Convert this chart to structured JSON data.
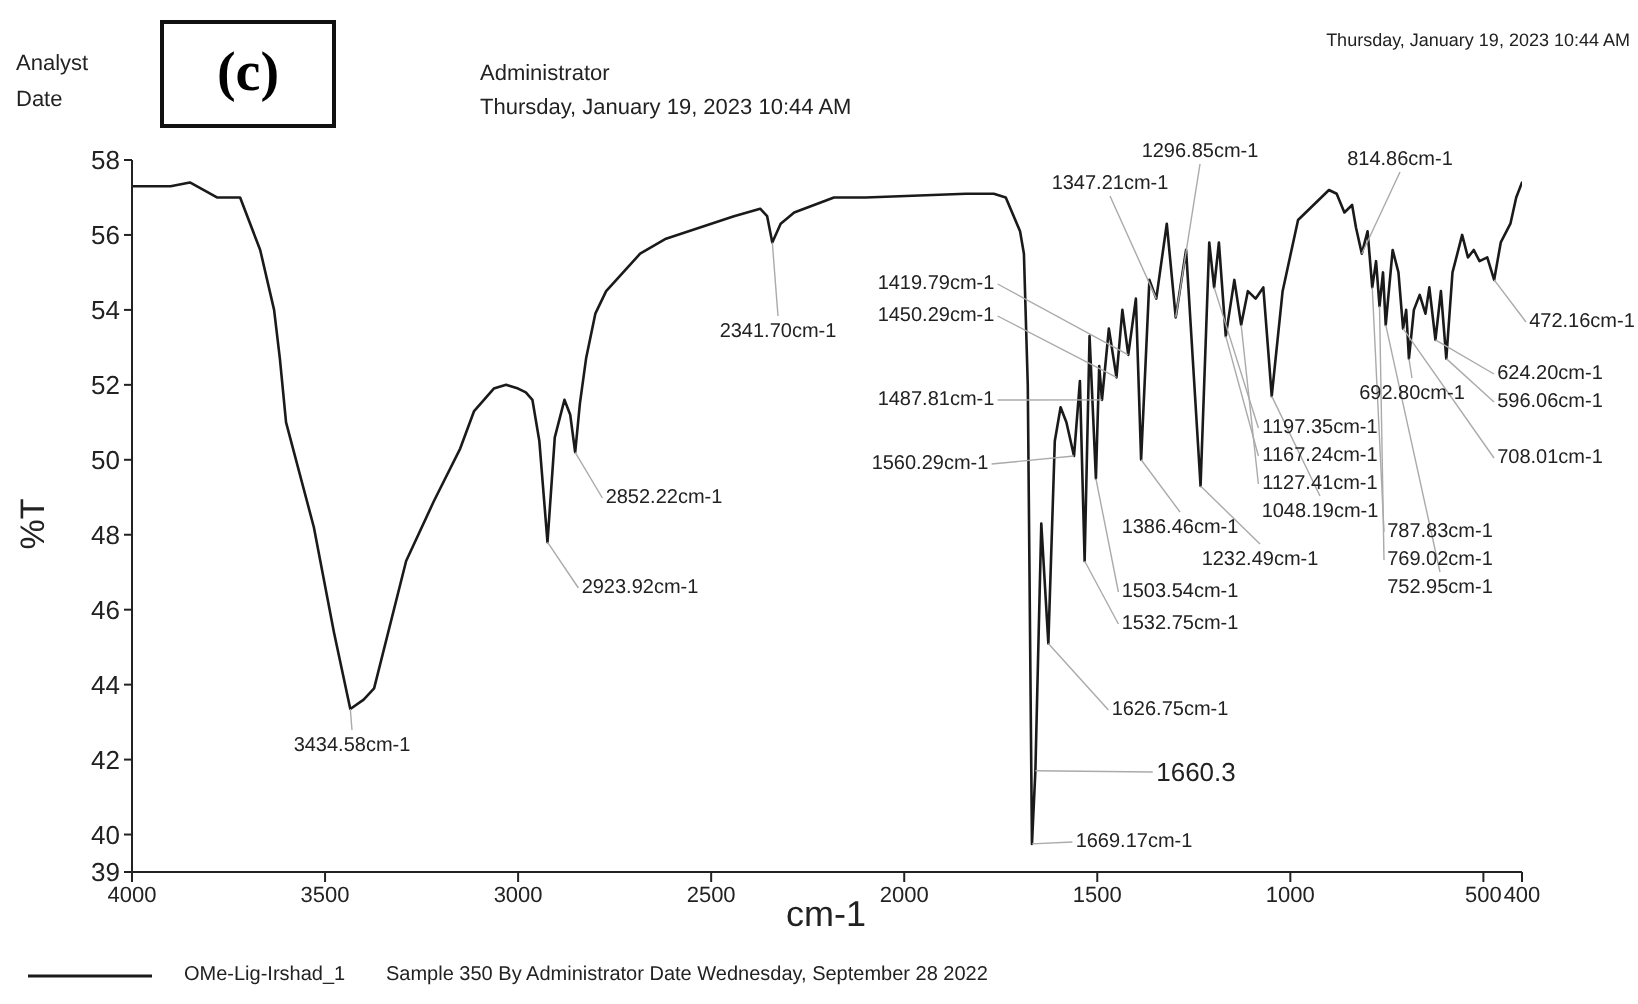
{
  "chart_data": {
    "type": "line",
    "title": "(c)",
    "xlabel": "cm-1",
    "ylabel": "%T",
    "xlim": [
      4000,
      400
    ],
    "xticks": [
      4000,
      3500,
      3000,
      2500,
      2000,
      1500,
      1000,
      500,
      400
    ],
    "ylim": [
      39,
      58
    ],
    "yticks": [
      39,
      40,
      42,
      44,
      46,
      48,
      50,
      52,
      54,
      56,
      58
    ],
    "grid": false,
    "legend": "bottom left",
    "marker": "none",
    "line_style": "solid",
    "series": [
      {
        "name": "OMe-Lig-Irshad_1",
        "color": "#1a1a1a",
        "x": [
          4000,
          3900,
          3850,
          3780,
          3720,
          3668,
          3632,
          3617,
          3601,
          3529,
          3477,
          3434.58,
          3400,
          3373,
          3290,
          3218,
          3150,
          3114,
          3063,
          3031,
          3000,
          2980,
          2963,
          2945,
          2923.92,
          2905,
          2880,
          2865,
          2852.22,
          2840,
          2824,
          2800,
          2772,
          2684,
          2617,
          2441,
          2373,
          2355,
          2341.7,
          2320,
          2285,
          2182,
          2100,
          1840,
          1768,
          1737,
          1700,
          1690,
          1680,
          1669.17,
          1660.3,
          1645,
          1626.75,
          1610,
          1595,
          1580,
          1560.29,
          1545,
          1532.75,
          1520,
          1503.54,
          1495,
          1487.81,
          1470,
          1450.29,
          1435,
          1419.79,
          1400,
          1386.46,
          1365,
          1347.21,
          1320,
          1296.85,
          1270,
          1232.49,
          1210,
          1197.35,
          1185,
          1167.24,
          1145,
          1127.41,
          1110,
          1090,
          1070,
          1048.19,
          1020,
          980,
          930,
          900,
          880,
          860,
          840,
          830,
          814.86,
          800,
          787.83,
          778,
          769.02,
          760,
          752.95,
          735,
          720,
          708.01,
          700,
          692.8,
          680,
          665,
          650,
          640,
          624.2,
          610,
          596.06,
          580,
          555,
          540,
          525,
          510,
          490,
          472.16,
          455,
          430,
          415,
          400
        ],
        "values": [
          57.3,
          57.3,
          57.4,
          57.0,
          57.0,
          55.6,
          54.0,
          52.7,
          51.0,
          48.2,
          45.4,
          43.35,
          43.6,
          43.9,
          47.3,
          48.9,
          50.3,
          51.3,
          51.9,
          52.0,
          51.9,
          51.8,
          51.6,
          50.5,
          47.8,
          50.6,
          51.6,
          51.2,
          50.2,
          51.5,
          52.7,
          53.9,
          54.5,
          55.5,
          55.9,
          56.5,
          56.7,
          56.5,
          55.8,
          56.3,
          56.6,
          57.0,
          57.0,
          57.1,
          57.1,
          57.0,
          56.1,
          55.5,
          52.0,
          39.75,
          41.7,
          48.3,
          45.1,
          50.5,
          51.4,
          51.0,
          50.1,
          52.1,
          47.3,
          53.3,
          49.5,
          52.5,
          51.6,
          53.5,
          52.2,
          54.0,
          52.8,
          54.3,
          50.0,
          54.8,
          54.3,
          56.3,
          53.8,
          55.6,
          49.3,
          55.8,
          54.6,
          55.8,
          53.3,
          54.8,
          53.6,
          54.5,
          54.3,
          54.6,
          51.7,
          54.5,
          56.4,
          56.9,
          57.2,
          57.1,
          56.6,
          56.8,
          56.2,
          55.5,
          56.1,
          54.6,
          55.3,
          54.1,
          55.0,
          53.6,
          55.6,
          55.0,
          53.5,
          54.0,
          52.7,
          54.0,
          54.4,
          53.9,
          54.6,
          53.2,
          54.5,
          52.7,
          55.0,
          56.0,
          55.4,
          55.6,
          55.3,
          55.4,
          54.8,
          55.8,
          56.3,
          57.0,
          57.4
        ]
      }
    ],
    "annotations": [
      "Analyst",
      "Date",
      "Administrator",
      "Thursday, January 19, 2023 10:44 AM",
      "Thursday, January 19, 2023 10:44 AM",
      "Sample 350 By Administrator Date Wednesday, September 28 2022",
      {
        "text": "3434.58cm-1",
        "x": 3434.58,
        "y": 43.35
      },
      {
        "text": "2923.92cm-1",
        "x": 2923.92,
        "y": 47.8
      },
      {
        "text": "2852.22cm-1",
        "x": 2852.22,
        "y": 50.2
      },
      {
        "text": "2341.70cm-1",
        "x": 2341.7,
        "y": 55.8
      },
      {
        "text": "1669.17cm-1",
        "x": 1669.17,
        "y": 39.75
      },
      {
        "text": "1660.3",
        "x": 1660.3,
        "y": 41.7
      },
      {
        "text": "1626.75cm-1",
        "x": 1626.75,
        "y": 45.1
      },
      {
        "text": "1532.75cm-1",
        "x": 1532.75,
        "y": 47.3
      },
      {
        "text": "1503.54cm-1",
        "x": 1503.54,
        "y": 49.5
      },
      {
        "text": "1232.49cm-1",
        "x": 1232.49,
        "y": 49.3
      },
      {
        "text": "1386.46cm-1",
        "x": 1386.46,
        "y": 50.0
      },
      {
        "text": "1560.29cm-1",
        "x": 1560.29,
        "y": 50.1
      },
      {
        "text": "1487.81cm-1",
        "x": 1487.81,
        "y": 51.6
      },
      {
        "text": "1167.24cm-1",
        "x": 1167.24,
        "y": 53.3
      },
      {
        "text": "1048.19cm-1",
        "x": 1048.19,
        "y": 51.7
      },
      {
        "text": "1450.29cm-1",
        "x": 1450.29,
        "y": 52.2
      },
      {
        "text": "1127.41cm-1",
        "x": 1127.41,
        "y": 53.6
      },
      {
        "text": "1296.85cm-1",
        "x": 1296.85,
        "y": 53.8
      },
      {
        "text": "1419.79cm-1",
        "x": 1419.79,
        "y": 52.8
      },
      {
        "text": "1347.21cm-1",
        "x": 1347.21,
        "y": 54.3
      },
      {
        "text": "1197.35cm-1",
        "x": 1197.35,
        "y": 54.6
      },
      {
        "text": "814.86cm-1",
        "x": 814.86,
        "y": 55.5
      },
      {
        "text": "787.83cm-1",
        "x": 787.83,
        "y": 54.6
      },
      {
        "text": "769.02cm-1",
        "x": 769.02,
        "y": 54.1
      },
      {
        "text": "752.95cm-1",
        "x": 752.95,
        "y": 53.6
      },
      {
        "text": "708.01cm-1",
        "x": 708.01,
        "y": 53.5
      },
      {
        "text": "692.80cm-1",
        "x": 692.8,
        "y": 52.7
      },
      {
        "text": "624.20cm-1",
        "x": 624.2,
        "y": 53.2
      },
      {
        "text": "596.06cm-1",
        "x": 596.06,
        "y": 52.7
      },
      {
        "text": "472.16cm-1",
        "x": 472.16,
        "y": 54.8
      }
    ]
  }
}
